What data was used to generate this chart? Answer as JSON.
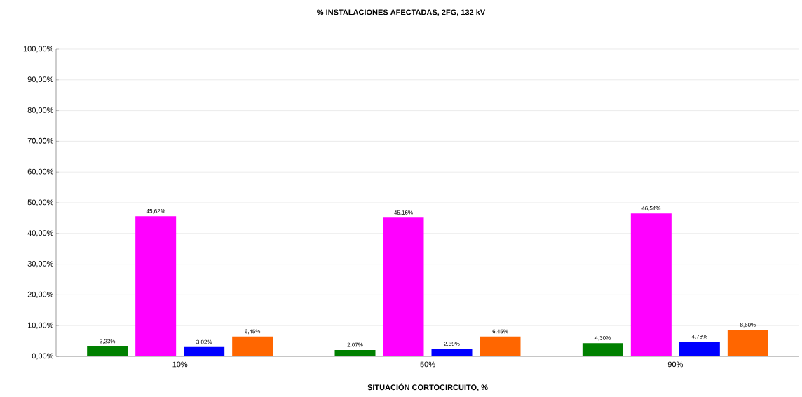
{
  "chart_data": {
    "type": "bar",
    "title": "% INSTALACIONES AFECTADAS, 2FG, 132 kV",
    "xlabel": "SITUACIÓN CORTOCIRCUITO, %",
    "categories": [
      "10%",
      "50%",
      "90%"
    ],
    "series": [
      {
        "color": "#008000",
        "values": [
          3.23,
          2.07,
          4.3
        ],
        "value_labels": [
          "3,23%",
          "2,07%",
          "4,30%"
        ]
      },
      {
        "color": "#ff00ff",
        "values": [
          45.62,
          45.16,
          46.54
        ],
        "value_labels": [
          "45,62%",
          "45,16%",
          "46,54%"
        ]
      },
      {
        "color": "#0000ff",
        "values": [
          3.02,
          2.39,
          4.78
        ],
        "value_labels": [
          "3,02%",
          "2,39%",
          "4,78%"
        ]
      },
      {
        "color": "#ff6600",
        "values": [
          6.45,
          6.45,
          8.6
        ],
        "value_labels": [
          "6,45%",
          "6,45%",
          "8,60%"
        ]
      }
    ],
    "ylim": [
      0,
      100
    ],
    "yticks": [
      {
        "value": 0,
        "label": "0,00%"
      },
      {
        "value": 10,
        "label": "10,00%"
      },
      {
        "value": 20,
        "label": "20,00%"
      },
      {
        "value": 30,
        "label": "30,00%"
      },
      {
        "value": 40,
        "label": "40,00%"
      },
      {
        "value": 50,
        "label": "50,00%"
      },
      {
        "value": 60,
        "label": "60,00%"
      },
      {
        "value": 70,
        "label": "70,00%"
      },
      {
        "value": 80,
        "label": "80,00%"
      },
      {
        "value": 90,
        "label": "90,00%"
      },
      {
        "value": 100,
        "label": "100,00%"
      }
    ],
    "grid": "y"
  }
}
